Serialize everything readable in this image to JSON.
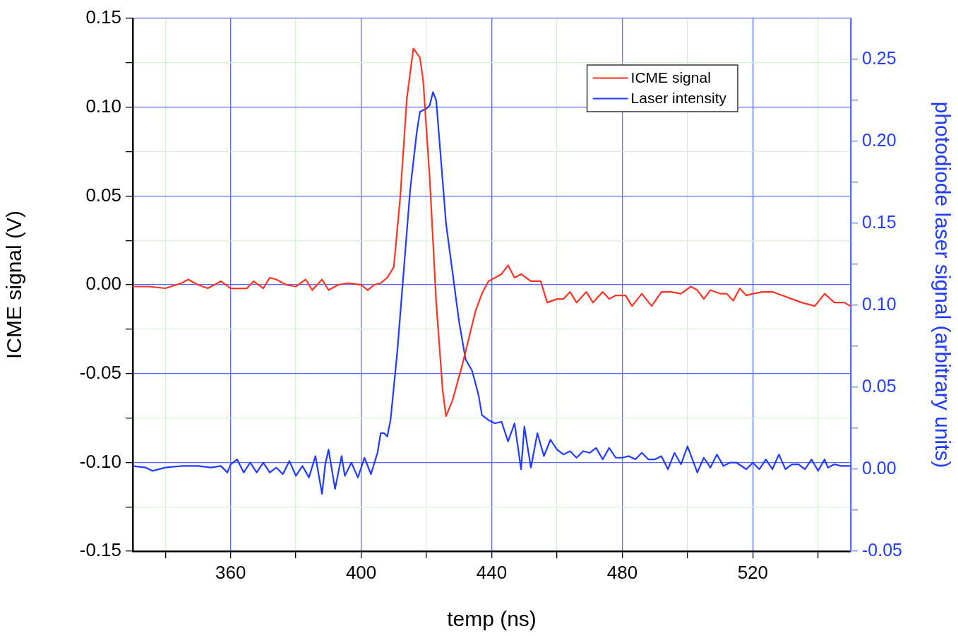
{
  "chart_data": {
    "type": "line",
    "xlabel": "temp (ns)",
    "ylabel": "ICME signal (V)",
    "y2label": "photodiode laser signal (arbitrary units)",
    "xlim": [
      330,
      550
    ],
    "xticks": [
      {
        "value": 340,
        "label": null
      },
      360,
      {
        "value": 380,
        "label": null
      },
      400,
      {
        "value": 420,
        "label": null
      },
      440,
      {
        "value": 460,
        "label": null
      },
      480,
      {
        "value": 500,
        "label": null
      },
      520,
      {
        "value": 540,
        "label": null
      }
    ],
    "ylim": [
      -0.15,
      0.15
    ],
    "yticks": [
      "-0.15",
      {
        "value": -0.125,
        "label": null
      },
      {
        "value": -0.1,
        "label": "-0.10"
      },
      {
        "value": -0.075,
        "label": null
      },
      {
        "value": -0.05,
        "label": "-0.05"
      },
      {
        "value": -0.025,
        "label": null
      },
      {
        "value": 0,
        "label": "0.00"
      },
      {
        "value": 0.025,
        "label": null
      },
      {
        "value": 0.05,
        "label": "0.05"
      },
      {
        "value": 0.075,
        "label": null
      },
      {
        "value": 0.1,
        "label": "0.10"
      },
      {
        "value": 0.125,
        "label": null
      },
      {
        "value": 0.15,
        "label": "0.15"
      }
    ],
    "y2lim": [
      -0.05,
      0.275
    ],
    "y2ticks": [
      {
        "value": -0.05,
        "label": "-0.05"
      },
      {
        "value": -0.025,
        "label": null
      },
      {
        "value": 0,
        "label": "0.00"
      },
      {
        "value": 0.025,
        "label": null
      },
      {
        "value": 0.05,
        "label": "0.05"
      },
      {
        "value": 0.075,
        "label": null
      },
      {
        "value": 0.1,
        "label": "0.10"
      },
      {
        "value": 0.125,
        "label": null
      },
      {
        "value": 0.15,
        "label": "0.15"
      },
      {
        "value": 0.175,
        "label": null
      },
      {
        "value": 0.2,
        "label": "0.20"
      },
      {
        "value": 0.225,
        "label": null
      },
      {
        "value": 0.25,
        "label": "0.25"
      }
    ],
    "grid": true,
    "legend": "top right",
    "marker": "none",
    "line_style": "solid",
    "series": [
      {
        "name": "ICME signal",
        "color": "#ff3322",
        "x": [
          330,
          335,
          340,
          345,
          347,
          350,
          353,
          357,
          360,
          365,
          367,
          370,
          372,
          374,
          377,
          380,
          383,
          385,
          388,
          390,
          393,
          396,
          400,
          402,
          404,
          406,
          408,
          410,
          412,
          414,
          416,
          418,
          419,
          421,
          423,
          425,
          426,
          428,
          431,
          433,
          435,
          437,
          439,
          441,
          443,
          445,
          447,
          449,
          452,
          455,
          457,
          460,
          462,
          464,
          466,
          469,
          471,
          474,
          476,
          478,
          481,
          483,
          486,
          489,
          492,
          495,
          498,
          501,
          503,
          505,
          507,
          510,
          512,
          514,
          516,
          518,
          520,
          523,
          526,
          529,
          532,
          535,
          539,
          542,
          545,
          548,
          550
        ],
        "values": [
          -0.001,
          -0.001,
          -0.002,
          0.001,
          0.003,
          0.0,
          -0.002,
          0.002,
          -0.002,
          -0.002,
          0.002,
          -0.002,
          0.004,
          0.003,
          0.0,
          -0.001,
          0.003,
          -0.003,
          0.003,
          -0.003,
          0.0,
          0.001,
          0.0,
          -0.003,
          0.0,
          0.001,
          0.004,
          0.01,
          0.05,
          0.105,
          0.133,
          0.128,
          0.115,
          0.06,
          -0.01,
          -0.06,
          -0.074,
          -0.065,
          -0.045,
          -0.03,
          -0.015,
          -0.005,
          0.002,
          0.004,
          0.006,
          0.011,
          0.004,
          0.006,
          0.002,
          0.002,
          -0.01,
          -0.008,
          -0.008,
          -0.004,
          -0.01,
          -0.004,
          -0.01,
          -0.004,
          -0.008,
          -0.006,
          -0.006,
          -0.012,
          -0.005,
          -0.012,
          -0.004,
          -0.004,
          -0.005,
          -0.001,
          -0.003,
          -0.008,
          -0.003,
          -0.005,
          -0.005,
          -0.009,
          -0.002,
          -0.006,
          -0.005,
          -0.004,
          -0.004,
          -0.006,
          -0.008,
          -0.01,
          -0.012,
          -0.005,
          -0.01,
          -0.01,
          -0.012
        ]
      },
      {
        "name": "Laser intensity",
        "color": "#1f3cff",
        "axis": "y2",
        "x": [
          330,
          334,
          336,
          340,
          345,
          350,
          354,
          357,
          359,
          360,
          362,
          364,
          366,
          368,
          370,
          372,
          374,
          376,
          378,
          380,
          382,
          384,
          386,
          388,
          389,
          390,
          392,
          394,
          395,
          397,
          399,
          401,
          403,
          405,
          406,
          407,
          408,
          409,
          411,
          413,
          415,
          417,
          418,
          420,
          421,
          422,
          423,
          424,
          426,
          428,
          430,
          432,
          434,
          436,
          437,
          439,
          441,
          443,
          445,
          447,
          449,
          450,
          452,
          454,
          456,
          458,
          460,
          462,
          464,
          466,
          468,
          470,
          472,
          474,
          476,
          478,
          480,
          482,
          484,
          486,
          488,
          490,
          492,
          494,
          496,
          498,
          500,
          503,
          505,
          507,
          509,
          511,
          513,
          515,
          518,
          520,
          522,
          524,
          526,
          528,
          530,
          532,
          534,
          536,
          538,
          540,
          542,
          543,
          545,
          547,
          550
        ],
        "values": [
          0.002,
          0.001,
          -0.001,
          0.001,
          0.002,
          0.002,
          0.001,
          0.002,
          -0.002,
          0.003,
          0.006,
          -0.002,
          0.004,
          -0.002,
          0.004,
          -0.002,
          0.001,
          -0.003,
          0.005,
          -0.004,
          0.002,
          -0.005,
          0.008,
          -0.015,
          0.003,
          0.012,
          -0.012,
          0.008,
          -0.004,
          0.004,
          -0.005,
          0.007,
          -0.003,
          0.01,
          0.022,
          0.022,
          0.02,
          0.03,
          0.07,
          0.12,
          0.17,
          0.205,
          0.218,
          0.22,
          0.222,
          0.23,
          0.225,
          0.2,
          0.15,
          0.12,
          0.09,
          0.067,
          0.06,
          0.045,
          0.033,
          0.03,
          0.028,
          0.029,
          0.017,
          0.028,
          0.0,
          0.026,
          0.001,
          0.022,
          0.008,
          0.018,
          0.012,
          0.009,
          0.011,
          0.007,
          0.011,
          0.01,
          0.013,
          0.006,
          0.013,
          0.007,
          0.007,
          0.008,
          0.006,
          0.01,
          0.006,
          0.006,
          0.008,
          0.0,
          0.01,
          0.003,
          0.014,
          -0.002,
          0.007,
          0.001,
          0.009,
          0.002,
          0.004,
          0.004,
          0.0,
          0.004,
          0.0,
          0.006,
          0.0,
          0.009,
          0.0,
          0.003,
          0.003,
          0.0,
          0.006,
          -0.001,
          0.006,
          0.001,
          0.003,
          0.002,
          0.002
        ]
      }
    ]
  }
}
